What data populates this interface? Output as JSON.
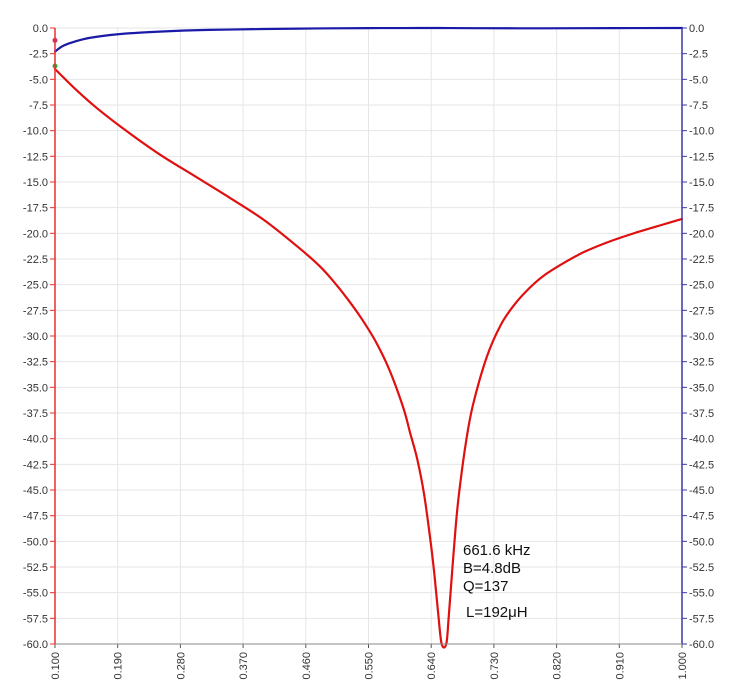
{
  "chart_data": {
    "type": "line",
    "xlabel": "",
    "ylabel": "",
    "x_ticks": [
      "0.100",
      "0.190",
      "0.280",
      "0.370",
      "0.460",
      "0.550",
      "0.640",
      "0.730",
      "0.820",
      "0.910",
      "1.000"
    ],
    "y_ticks": [
      "0.0",
      "-2.5",
      "-5.0",
      "-7.5",
      "-10.0",
      "-12.5",
      "-15.0",
      "-17.5",
      "-20.0",
      "-22.5",
      "-25.0",
      "-27.5",
      "-30.0",
      "-32.5",
      "-35.0",
      "-37.5",
      "-40.0",
      "-42.5",
      "-45.0",
      "-47.5",
      "-50.0",
      "-52.5",
      "-55.0",
      "-57.5",
      "-60.0"
    ],
    "xlim": [
      0.1,
      1.0
    ],
    "ylim": [
      -60,
      0
    ],
    "y2lim": [
      -60,
      0
    ],
    "grid": true,
    "colors": {
      "left_axis": "#e83030",
      "right_axis": "#3a3aa8",
      "grid": "#e6e6e6"
    },
    "series": [
      {
        "color": "#e01010",
        "axis": "left",
        "x": [
          0.1,
          0.13,
          0.16,
          0.2,
          0.25,
          0.3,
          0.35,
          0.4,
          0.45,
          0.48,
          0.5,
          0.52,
          0.54,
          0.56,
          0.58,
          0.6,
          0.61,
          0.62,
          0.63,
          0.64,
          0.645,
          0.65,
          0.655,
          0.6616,
          0.665,
          0.67,
          0.675,
          0.68,
          0.69,
          0.7,
          0.72,
          0.74,
          0.76,
          0.78,
          0.8,
          0.83,
          0.86,
          0.9,
          0.94,
          0.97,
          1.0
        ],
        "y": [
          -4.0,
          -6.0,
          -7.8,
          -9.9,
          -12.3,
          -14.4,
          -16.5,
          -18.7,
          -21.4,
          -23.2,
          -24.7,
          -26.4,
          -28.3,
          -30.5,
          -33.3,
          -37.0,
          -39.5,
          -42.0,
          -45.5,
          -50.5,
          -53.5,
          -57.0,
          -60.0,
          -60.0,
          -57.5,
          -53.0,
          -48.7,
          -45.3,
          -40.3,
          -36.7,
          -32.0,
          -28.9,
          -26.9,
          -25.4,
          -24.2,
          -22.9,
          -21.8,
          -20.7,
          -19.8,
          -19.2,
          -18.6
        ]
      },
      {
        "color": "#1a1aa8",
        "axis": "right",
        "x": [
          0.1,
          0.11,
          0.12,
          0.14,
          0.16,
          0.2,
          0.25,
          0.3,
          0.35,
          0.4,
          0.45,
          0.5,
          0.55,
          0.6,
          0.65,
          0.7,
          0.8,
          0.9,
          1.0
        ],
        "y": [
          -2.3,
          -1.8,
          -1.5,
          -1.1,
          -0.85,
          -0.55,
          -0.35,
          -0.22,
          -0.15,
          -0.1,
          -0.06,
          -0.03,
          -0.01,
          -0.005,
          0.0,
          -0.02,
          -0.03,
          -0.01,
          0.0
        ]
      }
    ],
    "markers": [
      {
        "x": 0.1,
        "y": -3.7,
        "color": "#33aa33"
      },
      {
        "x": 0.1,
        "y": -1.2,
        "color": "#cc3366"
      }
    ],
    "annotation": [
      "661.6 kHz",
      "B=4.8dB",
      "Q=137",
      "L=192μH"
    ]
  }
}
